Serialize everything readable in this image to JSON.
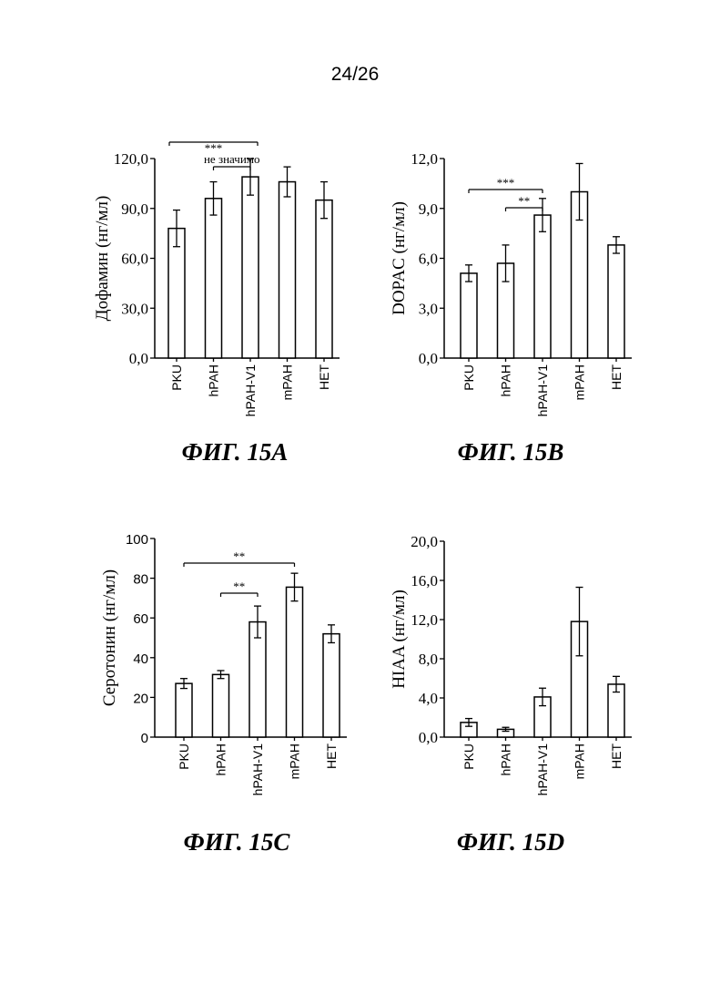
{
  "page_number": "24/26",
  "chart_data": [
    {
      "type": "bar",
      "caption": "ФИГ. 15А",
      "ylabel": "Дофамин (нг/мл)",
      "categories": [
        "PKU",
        "hPAH",
        "hPAH-V1",
        "mPAH",
        "HET"
      ],
      "values": [
        78,
        96,
        109,
        106,
        95
      ],
      "errors": [
        11,
        10,
        11,
        9,
        11
      ],
      "ylim": [
        0,
        120
      ],
      "yticks": [
        "0,0",
        "30,0",
        "60,0",
        "90,0",
        "120,0"
      ],
      "ytick_values": [
        0,
        30,
        60,
        90,
        120
      ],
      "significance": [
        {
          "from": 0,
          "to": 2,
          "label": "***"
        },
        {
          "from": 1,
          "to": 2,
          "label": "не значимо"
        }
      ]
    },
    {
      "type": "bar",
      "caption": "ФИГ. 15В",
      "ylabel": "DOPAC (нг/мл)",
      "categories": [
        "PKU",
        "hPAH",
        "hPAH-V1",
        "mPAH",
        "HET"
      ],
      "values": [
        5.1,
        5.7,
        8.6,
        10.0,
        6.8
      ],
      "errors": [
        0.5,
        1.1,
        1.0,
        1.7,
        0.5
      ],
      "ylim": [
        0,
        12
      ],
      "yticks": [
        "0,0",
        "3,0",
        "6,0",
        "9,0",
        "12,0"
      ],
      "ytick_values": [
        0,
        3,
        6,
        9,
        12
      ],
      "significance": [
        {
          "from": 0,
          "to": 2,
          "label": "***"
        },
        {
          "from": 1,
          "to": 2,
          "label": "**"
        }
      ]
    },
    {
      "type": "bar",
      "caption": "ФИГ. 15С",
      "ylabel": "Серотонин (нг/мл)",
      "categories": [
        "PKU",
        "hPAH",
        "hPAH-V1",
        "mPAH",
        "HET"
      ],
      "values": [
        27,
        31.5,
        58,
        75.5,
        52
      ],
      "errors": [
        2.5,
        2,
        8,
        7,
        4.5
      ],
      "ylim": [
        0,
        100
      ],
      "yticks": [
        "0",
        "20",
        "40",
        "60",
        "80",
        "100"
      ],
      "ytick_values": [
        0,
        20,
        40,
        60,
        80,
        100
      ],
      "significance": [
        {
          "from": 0,
          "to": 3,
          "label": "**"
        },
        {
          "from": 1,
          "to": 2,
          "label": "**"
        }
      ]
    },
    {
      "type": "bar",
      "caption": "ФИГ. 15D",
      "ylabel": "HIAA (нг/мл)",
      "categories": [
        "PKU",
        "hPAH",
        "hPAH-V1",
        "mPAH",
        "HET"
      ],
      "values": [
        1.5,
        0.8,
        4.1,
        11.8,
        5.4
      ],
      "errors": [
        0.4,
        0.2,
        0.9,
        3.5,
        0.8
      ],
      "ylim": [
        0,
        20
      ],
      "yticks": [
        "0,0",
        "4,0",
        "8,0",
        "12,0",
        "16,0",
        "20,0"
      ],
      "ytick_values": [
        0,
        4,
        8,
        12,
        16,
        20
      ],
      "significance": []
    }
  ]
}
